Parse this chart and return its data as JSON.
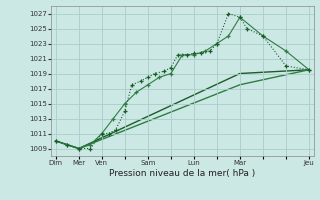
{
  "background_color": "#cce8e4",
  "grid_color": "#aaccc8",
  "line_color_dark": "#1a5c2a",
  "line_color_mid": "#2e7d42",
  "xlabel": "Pression niveau de la mer( hPa )",
  "ylim": [
    1008,
    1028
  ],
  "yticks": [
    1009,
    1011,
    1013,
    1015,
    1017,
    1019,
    1021,
    1023,
    1025,
    1027
  ],
  "xtick_labels": [
    "Dim",
    "Mer",
    "Ven",
    "",
    "Sam",
    "",
    "Lun",
    "",
    "Mar",
    "",
    "",
    "Jeu"
  ],
  "xtick_positions": [
    0,
    1,
    2,
    3,
    4,
    5,
    6,
    7,
    8,
    9,
    10,
    11
  ],
  "series1_x": [
    0,
    0.5,
    1,
    1.5,
    2,
    2.3,
    2.6,
    3,
    3.3,
    3.7,
    4,
    4.3,
    4.7,
    5,
    5.3,
    5.7,
    6,
    6.3,
    6.7,
    7,
    7.5,
    8,
    8.3,
    9,
    10,
    11
  ],
  "series1_y": [
    1010,
    1009.5,
    1009,
    1009,
    1011,
    1011,
    1011.5,
    1014,
    1017.5,
    1018,
    1018.5,
    1019,
    1019.3,
    1019.8,
    1021.5,
    1021.5,
    1021.7,
    1021.7,
    1022,
    1023,
    1027,
    1026.5,
    1025,
    1024,
    1020,
    1019.5
  ],
  "series2_x": [
    0,
    0.5,
    1,
    1.5,
    2,
    2.5,
    3,
    3.5,
    4,
    4.5,
    5,
    5.5,
    6,
    6.5,
    7,
    7.5,
    8,
    9,
    10,
    11
  ],
  "series2_y": [
    1010,
    1009.5,
    1009,
    1009.5,
    1011,
    1013,
    1015,
    1016.5,
    1017.5,
    1018.5,
    1019,
    1021.5,
    1021.5,
    1022,
    1023,
    1024,
    1026.5,
    1024,
    1022,
    1019.5
  ],
  "series3_x": [
    0,
    1,
    8,
    11
  ],
  "series3_y": [
    1010,
    1009,
    1019,
    1019.5
  ],
  "series4_x": [
    0,
    1,
    8,
    11
  ],
  "series4_y": [
    1010,
    1009,
    1017.5,
    1019.5
  ]
}
